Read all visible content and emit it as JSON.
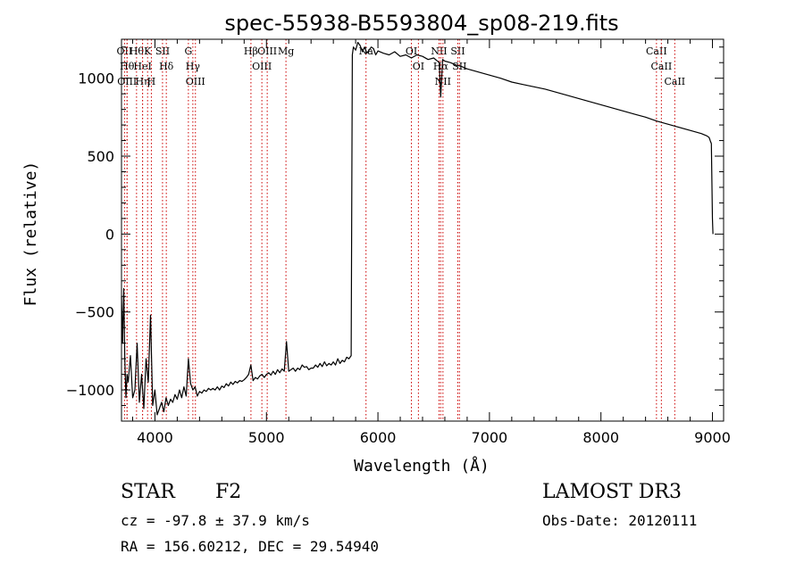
{
  "chart_data": {
    "type": "line",
    "title": "spec-55938-B5593804_sp08-219.fits",
    "xlabel": "Wavelength (Å)",
    "ylabel": "Flux (relative)",
    "xlim": [
      3700,
      9100
    ],
    "ylim": [
      -1200,
      1250
    ],
    "xticks": [
      4000,
      5000,
      6000,
      7000,
      8000,
      9000
    ],
    "yticks": [
      -1000,
      -500,
      0,
      500,
      1000
    ],
    "series": [
      {
        "name": "flux",
        "x": [
          3700,
          3710,
          3720,
          3730,
          3740,
          3750,
          3760,
          3780,
          3800,
          3820,
          3840,
          3860,
          3880,
          3900,
          3920,
          3940,
          3960,
          3980,
          4000,
          4020,
          4040,
          4060,
          4080,
          4100,
          4120,
          4140,
          4160,
          4180,
          4200,
          4220,
          4240,
          4260,
          4280,
          4300,
          4320,
          4340,
          4360,
          4380,
          4400,
          4420,
          4440,
          4460,
          4480,
          4500,
          4520,
          4540,
          4560,
          4580,
          4600,
          4620,
          4640,
          4660,
          4680,
          4700,
          4720,
          4740,
          4760,
          4780,
          4800,
          4820,
          4840,
          4860,
          4880,
          4900,
          4920,
          4940,
          4960,
          4980,
          5000,
          5020,
          5040,
          5060,
          5080,
          5100,
          5120,
          5140,
          5160,
          5180,
          5200,
          5220,
          5240,
          5260,
          5280,
          5300,
          5320,
          5340,
          5360,
          5380,
          5400,
          5420,
          5440,
          5460,
          5480,
          5500,
          5520,
          5540,
          5560,
          5580,
          5600,
          5620,
          5640,
          5660,
          5680,
          5700,
          5720,
          5740,
          5760,
          5770,
          5780,
          5800,
          5820,
          5840,
          5860,
          5880,
          5900,
          5920,
          5940,
          5960,
          5980,
          6000,
          6050,
          6100,
          6150,
          6200,
          6250,
          6300,
          6350,
          6400,
          6450,
          6500,
          6550,
          6563,
          6580,
          6600,
          6650,
          6700,
          6750,
          6800,
          6850,
          6900,
          6950,
          7000,
          7100,
          7200,
          7300,
          7400,
          7500,
          7600,
          7700,
          7800,
          7900,
          8000,
          8100,
          8200,
          8300,
          8400,
          8500,
          8600,
          8700,
          8800,
          8900,
          8950,
          8970,
          8980,
          8990,
          9000,
          9005
        ],
        "values": [
          -400,
          -700,
          -350,
          -800,
          -1050,
          -900,
          -950,
          -780,
          -1050,
          -1000,
          -700,
          -1080,
          -900,
          -1120,
          -800,
          -950,
          -520,
          -1100,
          -1000,
          -1160,
          -1120,
          -1080,
          -1140,
          -1050,
          -1100,
          -1060,
          -1080,
          -1030,
          -1060,
          -1000,
          -1050,
          -980,
          -1040,
          -800,
          -960,
          -1000,
          -980,
          -1040,
          -1010,
          -1020,
          -1000,
          -1010,
          -990,
          -1000,
          -990,
          -1000,
          -980,
          -1000,
          -975,
          -985,
          -960,
          -975,
          -950,
          -965,
          -945,
          -955,
          -940,
          -945,
          -935,
          -920,
          -900,
          -840,
          -940,
          -920,
          -930,
          -910,
          -900,
          -920,
          -900,
          -890,
          -905,
          -880,
          -900,
          -870,
          -890,
          -865,
          -880,
          -690,
          -880,
          -870,
          -860,
          -880,
          -860,
          -870,
          -840,
          -855,
          -850,
          -870,
          -860,
          -860,
          -840,
          -855,
          -830,
          -850,
          -820,
          -845,
          -830,
          -840,
          -820,
          -840,
          -800,
          -830,
          -810,
          -820,
          -790,
          -800,
          -780,
          1150,
          1200,
          1180,
          1230,
          1210,
          1170,
          1200,
          1160,
          1180,
          1200,
          1190,
          1150,
          1175,
          1160,
          1150,
          1170,
          1140,
          1150,
          1130,
          1150,
          1140,
          1120,
          1130,
          1100,
          880,
          1120,
          1110,
          1100,
          1085,
          1075,
          1060,
          1050,
          1040,
          1030,
          1020,
          1000,
          975,
          960,
          945,
          930,
          910,
          890,
          870,
          850,
          830,
          810,
          790,
          770,
          750,
          725,
          705,
          685,
          665,
          645,
          630,
          620,
          600,
          580,
          100,
          0
        ],
        "color": "#000000"
      }
    ],
    "line_markers": [
      {
        "x": 3727,
        "label": "OII"
      },
      {
        "x": 3750,
        "label": "Hθ"
      },
      {
        "x": 3750,
        "label": "OIII"
      },
      {
        "x": 3835,
        "label": "Hθ"
      },
      {
        "x": 3889,
        "label": "HeI"
      },
      {
        "x": 3889,
        "label": "Hη"
      },
      {
        "x": 3934,
        "label": "K"
      },
      {
        "x": 3968,
        "label": "H"
      },
      {
        "x": 4068,
        "label": "SII"
      },
      {
        "x": 4102,
        "label": "Hδ"
      },
      {
        "x": 4300,
        "label": "G"
      },
      {
        "x": 4340,
        "label": "Hγ"
      },
      {
        "x": 4363,
        "label": "OIII"
      },
      {
        "x": 4861,
        "label": "Hβ"
      },
      {
        "x": 4959,
        "label": "OIII"
      },
      {
        "x": 5007,
        "label": "OIII"
      },
      {
        "x": 5175,
        "label": "Mg"
      },
      {
        "x": 5893,
        "label": "Na"
      },
      {
        "x": 6300,
        "label": "OI"
      },
      {
        "x": 6363,
        "label": "OI"
      },
      {
        "x": 6548,
        "label": "NII"
      },
      {
        "x": 6563,
        "label": "Hα"
      },
      {
        "x": 6583,
        "label": "NII"
      },
      {
        "x": 6716,
        "label": "SII"
      },
      {
        "x": 6731,
        "label": "SII"
      },
      {
        "x": 8498,
        "label": "CaII"
      },
      {
        "x": 8542,
        "label": "CaII"
      },
      {
        "x": 8662,
        "label": "CaII"
      }
    ]
  },
  "info": {
    "object_class": "STAR",
    "subclass": "F2",
    "survey": "LAMOST DR3",
    "cz": "cz = -97.8 ± 37.9 km/s",
    "obs_date": "Obs-Date: 20120111",
    "coords": "RA = 156.60212, DEC =  29.54940"
  }
}
